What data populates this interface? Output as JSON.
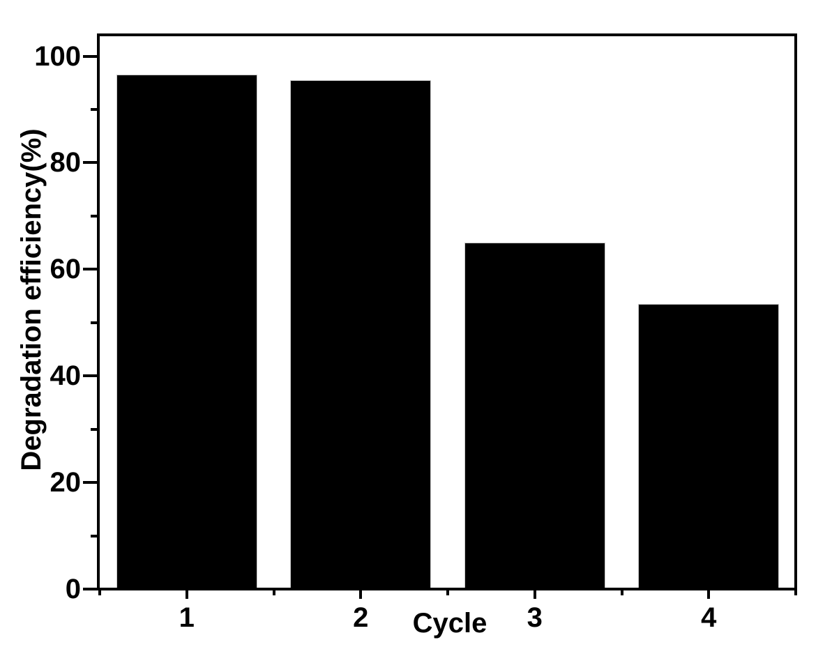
{
  "figure": {
    "background": "#ffffff",
    "axis_color": "#000000"
  },
  "chart_data": {
    "type": "bar",
    "title": "",
    "categories": [
      "1",
      "2",
      "3",
      "4"
    ],
    "values": [
      96.5,
      95.5,
      65,
      53.5
    ],
    "xlabel": "Cycle",
    "ylabel": "Degradation efficiency(%)",
    "ylim": [
      0,
      104
    ],
    "y_major_ticks": [
      0,
      20,
      40,
      60,
      80,
      100
    ],
    "y_minor_ticks": [
      10,
      30,
      50,
      70,
      90
    ],
    "x_minor_ticks_at_category_boundaries": true,
    "bar_color": "#000000",
    "bar_edge_color": "#c8c8c8",
    "grid": false,
    "legend": false,
    "frame": "full-box",
    "tick_direction": "out"
  }
}
